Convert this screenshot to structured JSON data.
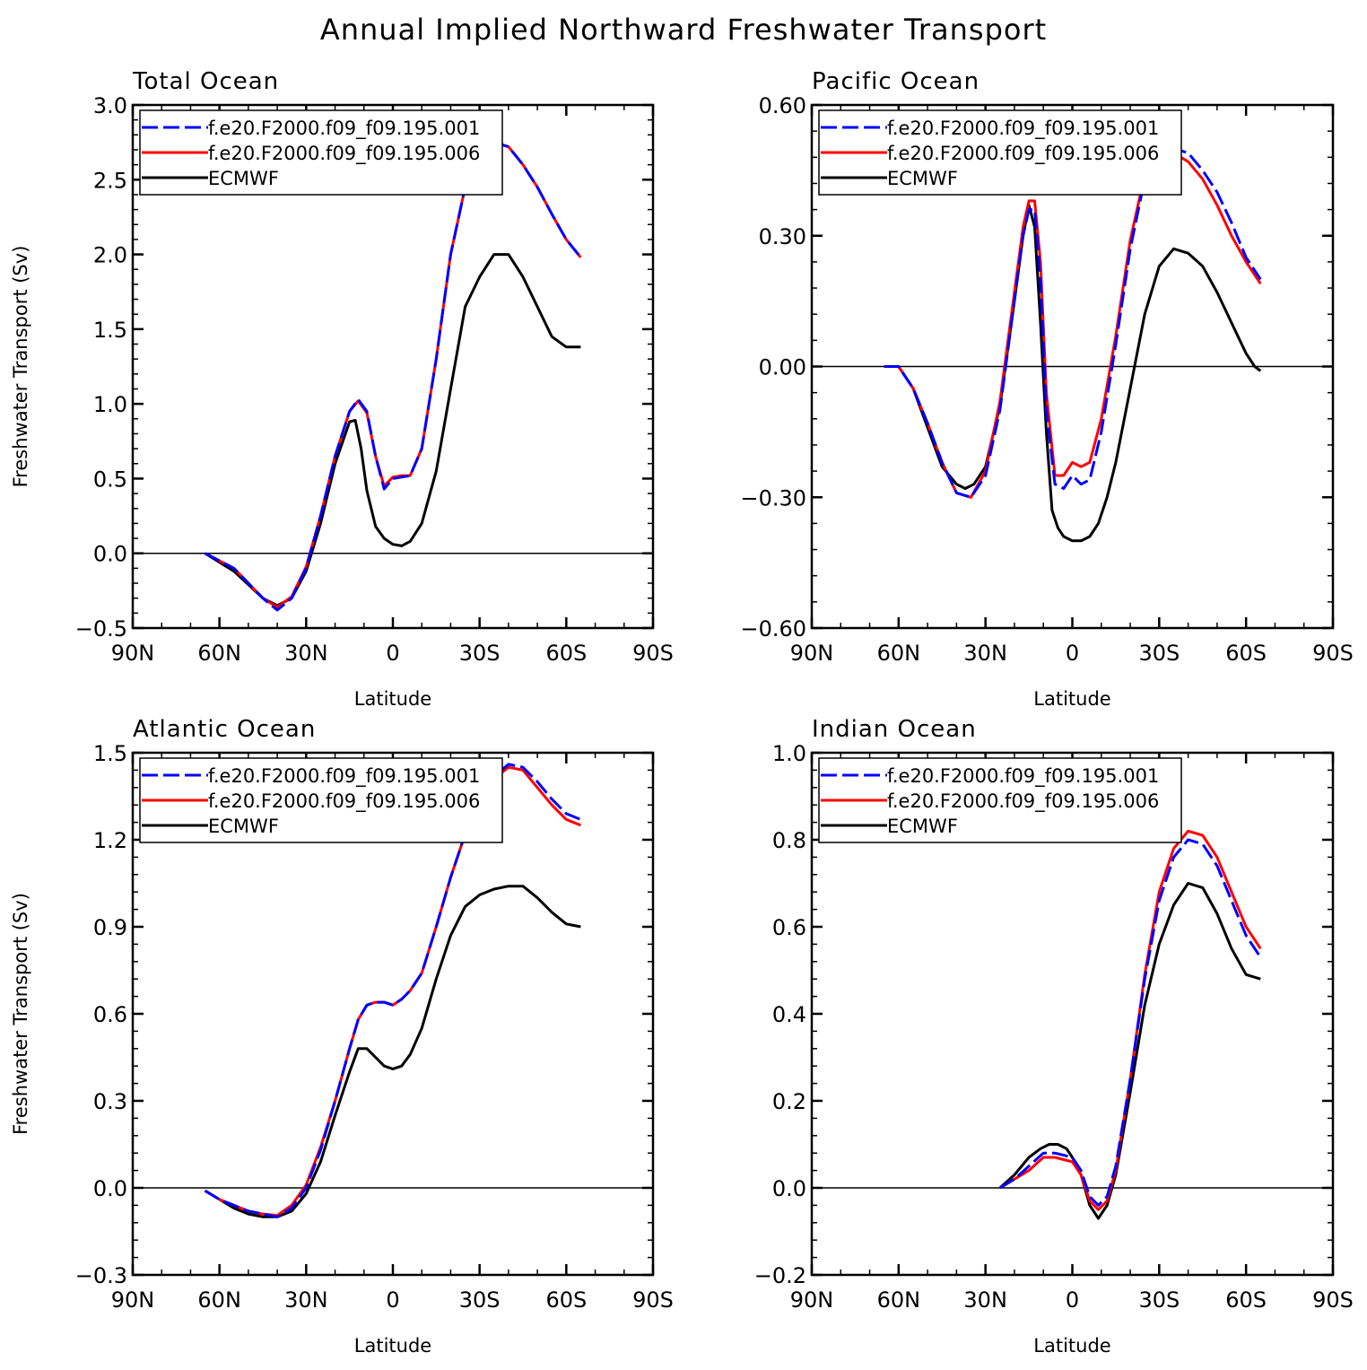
{
  "title": "Annual Implied Northward Freshwater Transport",
  "series_styles": [
    {
      "name": "f.e20.F2000.f09_f09.195.001",
      "color": "#0000ff",
      "dash": "dashed"
    },
    {
      "name": "f.e20.F2000.f09_f09.195.006",
      "color": "#ff0000",
      "dash": "solid"
    },
    {
      "name": "ECMWF",
      "color": "#000000",
      "dash": "solid"
    }
  ],
  "chart_data": [
    {
      "type": "line",
      "title": "Total Ocean",
      "xlabel": "Latitude",
      "ylabel": "Freshwater Transport (Sv)",
      "x_ticks": [
        "90N",
        "60N",
        "30N",
        "0",
        "30S",
        "60S",
        "90S"
      ],
      "xlim": [
        90,
        -90
      ],
      "ylim": [
        -0.5,
        3.0
      ],
      "y_ticks": [
        "−0.5",
        "0.0",
        "0.5",
        "1.0",
        "1.5",
        "2.0",
        "2.5",
        "3.0"
      ],
      "y_tick_values": [
        -0.5,
        0.0,
        0.5,
        1.0,
        1.5,
        2.0,
        2.5,
        3.0
      ],
      "legend": "top-left",
      "series": [
        {
          "name": "f.e20.F2000.f09_f09.195.001",
          "x": [
            65,
            55,
            45,
            40,
            35,
            30,
            25,
            20,
            15,
            12,
            9,
            6,
            3,
            0,
            -3,
            -6,
            -10,
            -15,
            -20,
            -25,
            -30,
            -35,
            -40,
            -45,
            -50,
            -55,
            -60,
            -65
          ],
          "y": [
            0.0,
            -0.1,
            -0.3,
            -0.38,
            -0.3,
            -0.1,
            0.25,
            0.65,
            0.95,
            1.03,
            0.95,
            0.65,
            0.43,
            0.5,
            0.51,
            0.52,
            0.7,
            1.3,
            2.0,
            2.45,
            2.68,
            2.75,
            2.72,
            2.6,
            2.45,
            2.27,
            2.1,
            1.98
          ]
        },
        {
          "name": "f.e20.F2000.f09_f09.195.006",
          "x": [
            65,
            55,
            45,
            40,
            35,
            30,
            25,
            20,
            15,
            12,
            9,
            6,
            3,
            0,
            -3,
            -6,
            -10,
            -15,
            -20,
            -25,
            -30,
            -35,
            -40,
            -45,
            -50,
            -55,
            -60,
            -65
          ],
          "y": [
            0.0,
            -0.1,
            -0.3,
            -0.36,
            -0.29,
            -0.09,
            0.25,
            0.65,
            0.95,
            1.02,
            0.94,
            0.65,
            0.45,
            0.51,
            0.52,
            0.52,
            0.7,
            1.3,
            2.0,
            2.45,
            2.68,
            2.75,
            2.72,
            2.6,
            2.45,
            2.27,
            2.1,
            1.98
          ]
        },
        {
          "name": "ECMWF",
          "x": [
            65,
            55,
            45,
            40,
            35,
            30,
            25,
            20,
            15,
            13,
            11,
            9,
            6,
            3,
            0,
            -3,
            -6,
            -10,
            -15,
            -20,
            -25,
            -30,
            -35,
            -40,
            -45,
            -50,
            -55,
            -60,
            -65
          ],
          "y": [
            0.0,
            -0.12,
            -0.3,
            -0.35,
            -0.3,
            -0.12,
            0.2,
            0.6,
            0.88,
            0.89,
            0.7,
            0.42,
            0.18,
            0.1,
            0.06,
            0.05,
            0.08,
            0.2,
            0.55,
            1.1,
            1.65,
            1.85,
            2.0,
            2.0,
            1.85,
            1.65,
            1.45,
            1.38,
            1.38
          ]
        }
      ]
    },
    {
      "type": "line",
      "title": "Pacific Ocean",
      "xlabel": "Latitude",
      "ylabel": "",
      "x_ticks": [
        "90N",
        "60N",
        "30N",
        "0",
        "30S",
        "60S",
        "90S"
      ],
      "xlim": [
        90,
        -90
      ],
      "ylim": [
        -0.6,
        0.6
      ],
      "y_ticks": [
        "−0.60",
        "−0.30",
        "0.00",
        "0.30",
        "0.60"
      ],
      "y_tick_values": [
        -0.6,
        -0.3,
        0.0,
        0.3,
        0.6
      ],
      "legend": "top-left",
      "series": [
        {
          "name": "f.e20.F2000.f09_f09.195.001",
          "x": [
            65,
            60,
            55,
            50,
            45,
            40,
            35,
            30,
            25,
            20,
            17,
            15,
            13,
            11,
            9,
            6,
            3,
            0,
            -3,
            -6,
            -10,
            -15,
            -20,
            -25,
            -30,
            -35,
            -40,
            -45,
            -50,
            -55,
            -60,
            -65
          ],
          "y": [
            0.0,
            0.0,
            -0.05,
            -0.13,
            -0.22,
            -0.29,
            -0.3,
            -0.25,
            -0.1,
            0.15,
            0.3,
            0.36,
            0.36,
            0.2,
            -0.1,
            -0.27,
            -0.28,
            -0.25,
            -0.27,
            -0.26,
            -0.15,
            0.05,
            0.27,
            0.43,
            0.49,
            0.5,
            0.49,
            0.45,
            0.4,
            0.33,
            0.25,
            0.2
          ]
        },
        {
          "name": "f.e20.F2000.f09_f09.195.006",
          "x": [
            65,
            60,
            55,
            50,
            45,
            40,
            35,
            30,
            25,
            20,
            17,
            15,
            13,
            11,
            9,
            6,
            3,
            0,
            -3,
            -6,
            -10,
            -15,
            -20,
            -25,
            -30,
            -35,
            -40,
            -45,
            -50,
            -55,
            -60,
            -65
          ],
          "y": [
            0.0,
            0.0,
            -0.05,
            -0.13,
            -0.22,
            -0.29,
            -0.3,
            -0.24,
            -0.08,
            0.17,
            0.32,
            0.38,
            0.38,
            0.24,
            -0.06,
            -0.25,
            -0.25,
            -0.22,
            -0.23,
            -0.22,
            -0.12,
            0.07,
            0.29,
            0.44,
            0.49,
            0.49,
            0.47,
            0.43,
            0.37,
            0.3,
            0.24,
            0.19
          ]
        },
        {
          "name": "ECMWF",
          "x": [
            65,
            60,
            55,
            50,
            45,
            40,
            37,
            34,
            30,
            25,
            20,
            17,
            15,
            13,
            11,
            9,
            7,
            5,
            3,
            0,
            -3,
            -6,
            -9,
            -12,
            -15,
            -20,
            -25,
            -30,
            -35,
            -40,
            -45,
            -50,
            -55,
            -60,
            -63,
            -65
          ],
          "y": [
            0.0,
            0.0,
            -0.05,
            -0.14,
            -0.23,
            -0.27,
            -0.28,
            -0.27,
            -0.23,
            -0.09,
            0.15,
            0.3,
            0.37,
            0.32,
            0.1,
            -0.15,
            -0.33,
            -0.37,
            -0.39,
            -0.4,
            -0.4,
            -0.39,
            -0.36,
            -0.3,
            -0.22,
            -0.05,
            0.12,
            0.23,
            0.27,
            0.26,
            0.23,
            0.17,
            0.1,
            0.03,
            0.0,
            -0.01
          ]
        }
      ]
    },
    {
      "type": "line",
      "title": "Atlantic Ocean",
      "xlabel": "Latitude",
      "ylabel": "Freshwater Transport (Sv)",
      "x_ticks": [
        "90N",
        "60N",
        "30N",
        "0",
        "30S",
        "60S",
        "90S"
      ],
      "xlim": [
        90,
        -90
      ],
      "ylim": [
        -0.3,
        1.5
      ],
      "y_ticks": [
        "−0.3",
        "0.0",
        "0.3",
        "0.6",
        "0.9",
        "1.2",
        "1.5"
      ],
      "y_tick_values": [
        -0.3,
        0.0,
        0.3,
        0.6,
        0.9,
        1.2,
        1.5
      ],
      "legend": "top-left",
      "series": [
        {
          "name": "f.e20.F2000.f09_f09.195.001",
          "x": [
            65,
            60,
            55,
            50,
            45,
            40,
            35,
            30,
            25,
            20,
            15,
            12,
            9,
            6,
            3,
            0,
            -3,
            -6,
            -10,
            -15,
            -20,
            -25,
            -30,
            -35,
            -40,
            -45,
            -50,
            -55,
            -60,
            -65
          ],
          "y": [
            -0.01,
            -0.04,
            -0.06,
            -0.08,
            -0.09,
            -0.1,
            -0.07,
            0.0,
            0.13,
            0.3,
            0.48,
            0.58,
            0.63,
            0.64,
            0.64,
            0.63,
            0.65,
            0.68,
            0.74,
            0.9,
            1.07,
            1.22,
            1.34,
            1.42,
            1.46,
            1.45,
            1.4,
            1.34,
            1.29,
            1.27
          ]
        },
        {
          "name": "f.e20.F2000.f09_f09.195.006",
          "x": [
            65,
            60,
            55,
            50,
            45,
            40,
            35,
            30,
            25,
            20,
            15,
            12,
            9,
            6,
            3,
            0,
            -3,
            -6,
            -10,
            -15,
            -20,
            -25,
            -30,
            -35,
            -40,
            -45,
            -50,
            -55,
            -60,
            -65
          ],
          "y": [
            -0.01,
            -0.04,
            -0.06,
            -0.08,
            -0.09,
            -0.095,
            -0.06,
            0.01,
            0.14,
            0.3,
            0.48,
            0.58,
            0.63,
            0.64,
            0.64,
            0.63,
            0.65,
            0.68,
            0.74,
            0.9,
            1.07,
            1.22,
            1.33,
            1.41,
            1.45,
            1.44,
            1.38,
            1.32,
            1.27,
            1.25
          ]
        },
        {
          "name": "ECMWF",
          "x": [
            65,
            60,
            55,
            50,
            45,
            40,
            35,
            30,
            25,
            20,
            15,
            12,
            9,
            6,
            3,
            0,
            -3,
            -6,
            -10,
            -15,
            -20,
            -25,
            -30,
            -35,
            -40,
            -45,
            -50,
            -55,
            -60,
            -65
          ],
          "y": [
            -0.01,
            -0.04,
            -0.07,
            -0.09,
            -0.1,
            -0.1,
            -0.08,
            -0.02,
            0.09,
            0.25,
            0.4,
            0.48,
            0.48,
            0.45,
            0.42,
            0.41,
            0.42,
            0.46,
            0.55,
            0.72,
            0.87,
            0.97,
            1.01,
            1.03,
            1.04,
            1.04,
            1.0,
            0.95,
            0.91,
            0.9
          ]
        }
      ]
    },
    {
      "type": "line",
      "title": "Indian Ocean",
      "xlabel": "Latitude",
      "ylabel": "",
      "x_ticks": [
        "90N",
        "60N",
        "30N",
        "0",
        "30S",
        "60S",
        "90S"
      ],
      "xlim": [
        90,
        -90
      ],
      "ylim": [
        -0.2,
        1.0
      ],
      "y_ticks": [
        "−0.2",
        "0.0",
        "0.2",
        "0.4",
        "0.6",
        "0.8",
        "1.0"
      ],
      "y_tick_values": [
        -0.2,
        0.0,
        0.2,
        0.4,
        0.6,
        0.8,
        1.0
      ],
      "legend": "top-left",
      "series": [
        {
          "name": "f.e20.F2000.f09_f09.195.001",
          "x": [
            25,
            20,
            15,
            10,
            6,
            3,
            0,
            -3,
            -6,
            -9,
            -12,
            -15,
            -20,
            -25,
            -30,
            -35,
            -40,
            -45,
            -50,
            -55,
            -60,
            -65
          ],
          "y": [
            0.0,
            0.02,
            0.05,
            0.08,
            0.08,
            0.075,
            0.07,
            0.04,
            -0.02,
            -0.04,
            -0.02,
            0.05,
            0.25,
            0.48,
            0.66,
            0.76,
            0.8,
            0.79,
            0.74,
            0.66,
            0.58,
            0.53
          ]
        },
        {
          "name": "f.e20.F2000.f09_f09.195.006",
          "x": [
            25,
            20,
            15,
            10,
            6,
            3,
            0,
            -3,
            -6,
            -9,
            -12,
            -15,
            -20,
            -25,
            -30,
            -35,
            -40,
            -45,
            -50,
            -55,
            -60,
            -65
          ],
          "y": [
            0.0,
            0.02,
            0.04,
            0.07,
            0.07,
            0.065,
            0.06,
            0.03,
            -0.03,
            -0.05,
            -0.03,
            0.04,
            0.25,
            0.49,
            0.68,
            0.78,
            0.82,
            0.81,
            0.76,
            0.68,
            0.6,
            0.55
          ]
        },
        {
          "name": "ECMWF",
          "x": [
            25,
            20,
            15,
            11,
            8,
            5,
            2,
            0,
            -3,
            -6,
            -9,
            -12,
            -15,
            -20,
            -25,
            -30,
            -35,
            -40,
            -45,
            -50,
            -55,
            -60,
            -65
          ],
          "y": [
            0.0,
            0.03,
            0.07,
            0.09,
            0.1,
            0.1,
            0.09,
            0.07,
            0.03,
            -0.04,
            -0.07,
            -0.04,
            0.03,
            0.22,
            0.42,
            0.56,
            0.65,
            0.7,
            0.69,
            0.63,
            0.55,
            0.49,
            0.48
          ]
        }
      ]
    }
  ]
}
